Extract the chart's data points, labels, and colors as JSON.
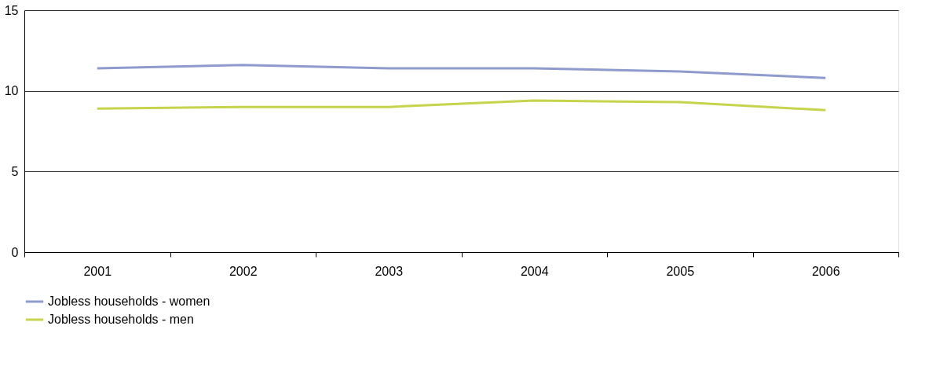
{
  "chart_data": {
    "type": "line",
    "categories": [
      "2001",
      "2002",
      "2003",
      "2004",
      "2005",
      "2006"
    ],
    "series": [
      {
        "name": "Jobless households - women",
        "color": "#8e9bcc",
        "values": [
          11.4,
          11.6,
          11.4,
          11.4,
          11.2,
          10.8
        ]
      },
      {
        "name": "Jobless households - men",
        "color": "#c5d44a",
        "values": [
          8.9,
          9.0,
          9.0,
          9.4,
          9.3,
          8.8
        ]
      }
    ],
    "ylim": [
      0,
      15
    ],
    "yticks": [
      0,
      5,
      10,
      15
    ],
    "grid": "y",
    "legend": "bottom",
    "marker": "none",
    "line_style": "solid"
  }
}
